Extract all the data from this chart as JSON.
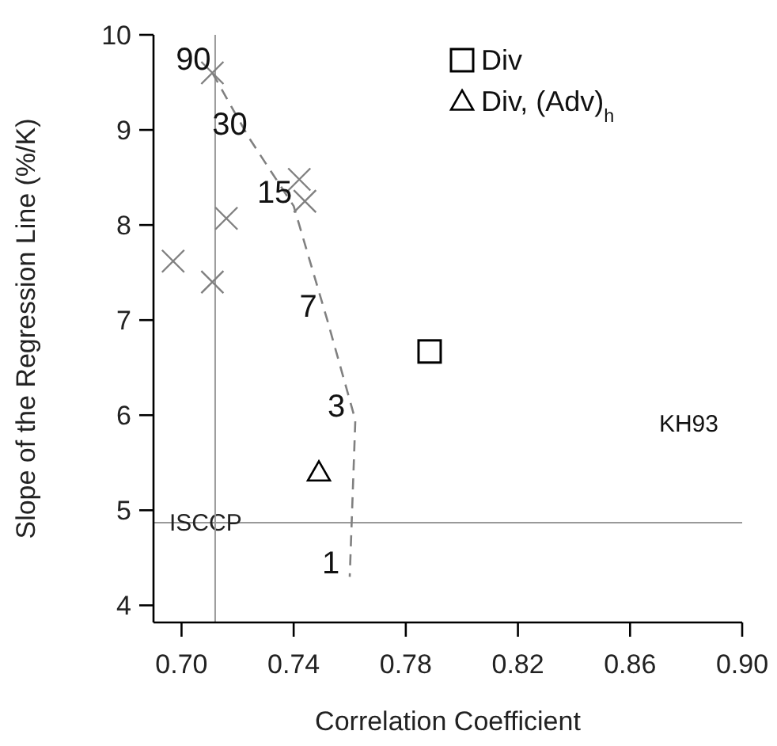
{
  "chart_data": {
    "type": "scatter",
    "xlabel": "Correlation Coefficient",
    "ylabel": "Slope of the Regression Line (%/K)",
    "xlim": [
      0.69,
      0.9
    ],
    "ylim": [
      3.82,
      10
    ],
    "xticks": [
      {
        "value": 0.7,
        "label": "0.70"
      },
      0.74,
      0.78,
      0.82,
      0.86,
      {
        "value": 0.9,
        "label": "0.90"
      }
    ],
    "yticks": [
      4,
      5,
      6,
      7,
      8,
      9,
      10
    ],
    "grid": false,
    "legend": "top right",
    "series": [
      {
        "marker": "cross",
        "color": "#808080",
        "x": [
          0.711,
          0.716,
          0.697,
          0.711,
          0.742,
          0.744
        ],
        "values": [
          9.6,
          8.07,
          7.62,
          7.4,
          8.48,
          8.25
        ]
      },
      {
        "type": "line",
        "marker": "none",
        "line_style": "dashed",
        "color": "#808080",
        "x": [
          0.711,
          0.724,
          0.74,
          0.752,
          0.762,
          0.76
        ],
        "values": [
          9.6,
          8.92,
          8.2,
          7.0,
          5.95,
          4.3
        ]
      },
      {
        "name": "Div",
        "marker": "square",
        "color": "#000000",
        "x": [
          0.7885
        ],
        "values": [
          6.67
        ]
      },
      {
        "name": "Div, (Adv)$_{h}$",
        "marker": "triangle",
        "color": "#000000",
        "x": [
          0.749
        ],
        "values": [
          5.4
        ]
      }
    ],
    "ref_lines": [
      {
        "axis": "y",
        "value": 4.87,
        "label": "ISCCP",
        "color": "#999999"
      },
      {
        "axis": "x",
        "value": 0.712,
        "color": "#999999"
      }
    ],
    "annotations": [
      {
        "text": "90",
        "x": 0.711,
        "y": 9.6
      },
      {
        "text": "30",
        "x": 0.724,
        "y": 8.92
      },
      {
        "text": "15",
        "x": 0.74,
        "y": 8.2
      },
      {
        "text": "7",
        "x": 0.752,
        "y": 7.0
      },
      {
        "text": "3",
        "x": 0.762,
        "y": 5.95
      },
      {
        "text": "1",
        "x": 0.76,
        "y": 4.3
      },
      "KH93"
    ]
  }
}
